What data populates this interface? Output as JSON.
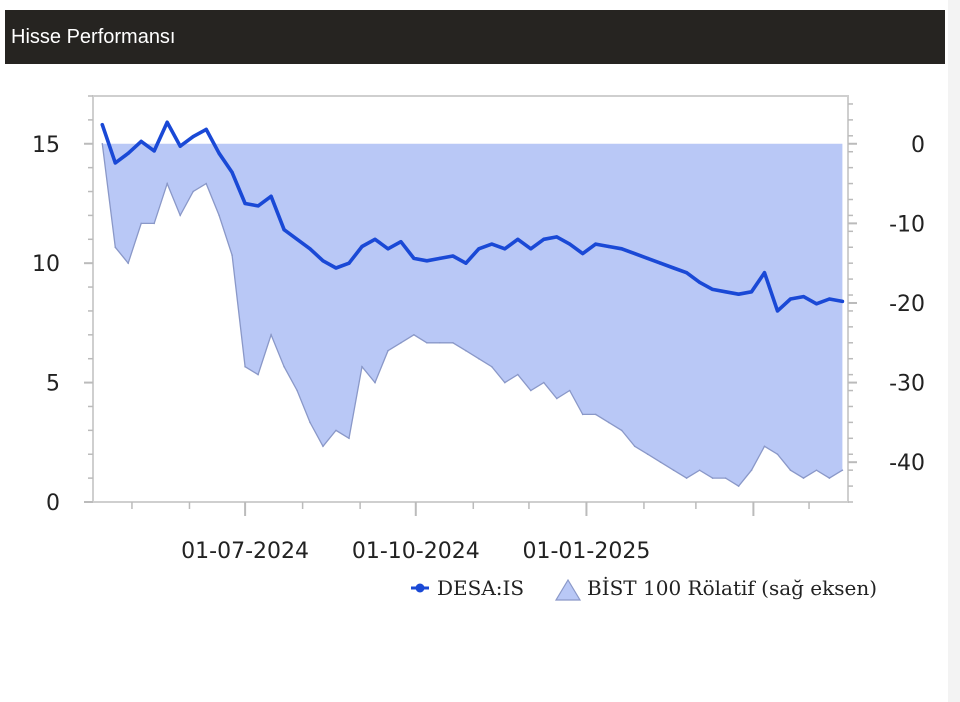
{
  "header": {
    "title": "Hisse Performansı"
  },
  "chart_data": {
    "type": "line",
    "x_tick_labels": [
      "01-07-2024",
      "01-10-2024",
      "01-01-2025"
    ],
    "y_left": {
      "ticks": [
        0,
        5,
        10,
        15
      ],
      "range": [
        0,
        17
      ]
    },
    "y_right": {
      "ticks": [
        0,
        -10,
        -20,
        -30,
        -40
      ],
      "range": [
        -45,
        6
      ]
    },
    "series": [
      {
        "name": "DESA:IS",
        "kind": "line",
        "axis": "left",
        "color": "#1a49d6",
        "x": [
          "2024-04-15",
          "2024-04-22",
          "2024-04-29",
          "2024-05-06",
          "2024-05-13",
          "2024-05-20",
          "2024-05-27",
          "2024-06-03",
          "2024-06-10",
          "2024-06-17",
          "2024-06-24",
          "2024-07-01",
          "2024-07-08",
          "2024-07-15",
          "2024-07-22",
          "2024-07-29",
          "2024-08-05",
          "2024-08-12",
          "2024-08-19",
          "2024-08-26",
          "2024-09-02",
          "2024-09-09",
          "2024-09-16",
          "2024-09-23",
          "2024-09-30",
          "2024-10-07",
          "2024-10-14",
          "2024-10-21",
          "2024-10-28",
          "2024-11-04",
          "2024-11-11",
          "2024-11-18",
          "2024-11-25",
          "2024-12-02",
          "2024-12-09",
          "2024-12-16",
          "2024-12-23",
          "2024-12-30",
          "2025-01-06",
          "2025-01-13",
          "2025-01-20",
          "2025-01-27",
          "2025-02-03",
          "2025-02-10",
          "2025-02-17",
          "2025-02-24",
          "2025-03-03",
          "2025-03-10",
          "2025-03-17",
          "2025-03-24",
          "2025-03-31",
          "2025-04-07",
          "2025-04-14",
          "2025-04-21",
          "2025-04-28",
          "2025-05-05",
          "2025-05-12",
          "2025-05-19"
        ],
        "values": [
          15.8,
          14.2,
          14.6,
          15.1,
          14.7,
          15.9,
          14.9,
          15.3,
          15.6,
          14.6,
          13.8,
          12.5,
          12.4,
          12.8,
          11.4,
          11.0,
          10.6,
          10.1,
          9.8,
          10.0,
          10.7,
          11.0,
          10.6,
          10.9,
          10.2,
          10.1,
          10.2,
          10.3,
          10.0,
          10.6,
          10.8,
          10.6,
          11.0,
          10.6,
          11.0,
          11.1,
          10.8,
          10.4,
          10.8,
          10.7,
          10.6,
          10.4,
          10.2,
          10.0,
          9.8,
          9.6,
          9.2,
          8.9,
          8.8,
          8.7,
          8.8,
          9.6,
          8.0,
          8.5,
          8.6,
          8.3,
          8.5,
          8.4
        ]
      },
      {
        "name": "BİST 100 Rölatif (sağ eksen)",
        "kind": "area",
        "axis": "right",
        "color": "#b9c8f6",
        "line_color": "#8a98c8",
        "x": [
          "2024-04-15",
          "2024-04-22",
          "2024-04-29",
          "2024-05-06",
          "2024-05-13",
          "2024-05-20",
          "2024-05-27",
          "2024-06-03",
          "2024-06-10",
          "2024-06-17",
          "2024-06-24",
          "2024-07-01",
          "2024-07-08",
          "2024-07-15",
          "2024-07-22",
          "2024-07-29",
          "2024-08-05",
          "2024-08-12",
          "2024-08-19",
          "2024-08-26",
          "2024-09-02",
          "2024-09-09",
          "2024-09-16",
          "2024-09-23",
          "2024-09-30",
          "2024-10-07",
          "2024-10-14",
          "2024-10-21",
          "2024-10-28",
          "2024-11-04",
          "2024-11-11",
          "2024-11-18",
          "2024-11-25",
          "2024-12-02",
          "2024-12-09",
          "2024-12-16",
          "2024-12-23",
          "2024-12-30",
          "2025-01-06",
          "2025-01-13",
          "2025-01-20",
          "2025-01-27",
          "2025-02-03",
          "2025-02-10",
          "2025-02-17",
          "2025-02-24",
          "2025-03-03",
          "2025-03-10",
          "2025-03-17",
          "2025-03-24",
          "2025-03-31",
          "2025-04-07",
          "2025-04-14",
          "2025-04-21",
          "2025-04-28",
          "2025-05-05",
          "2025-05-12",
          "2025-05-19"
        ],
        "values": [
          0,
          -13,
          -15,
          -10,
          -10,
          -5,
          -9,
          -6,
          -5,
          -9,
          -14,
          -28,
          -29,
          -24,
          -28,
          -31,
          -35,
          -38,
          -36,
          -37,
          -28,
          -30,
          -26,
          -25,
          -24,
          -25,
          -25,
          -25,
          -26,
          -27,
          -28,
          -30,
          -29,
          -31,
          -30,
          -32,
          -31,
          -34,
          -34,
          -35,
          -36,
          -38,
          -39,
          -40,
          -41,
          -42,
          -41,
          -42,
          -42,
          -43,
          -41,
          -38,
          -39,
          -41,
          -42,
          -41,
          -42,
          -41
        ]
      }
    ],
    "legend": {
      "position": "bottom-right",
      "entries": [
        "DESA:IS",
        "BİST 100 Rölatif (sağ eksen)"
      ]
    }
  }
}
